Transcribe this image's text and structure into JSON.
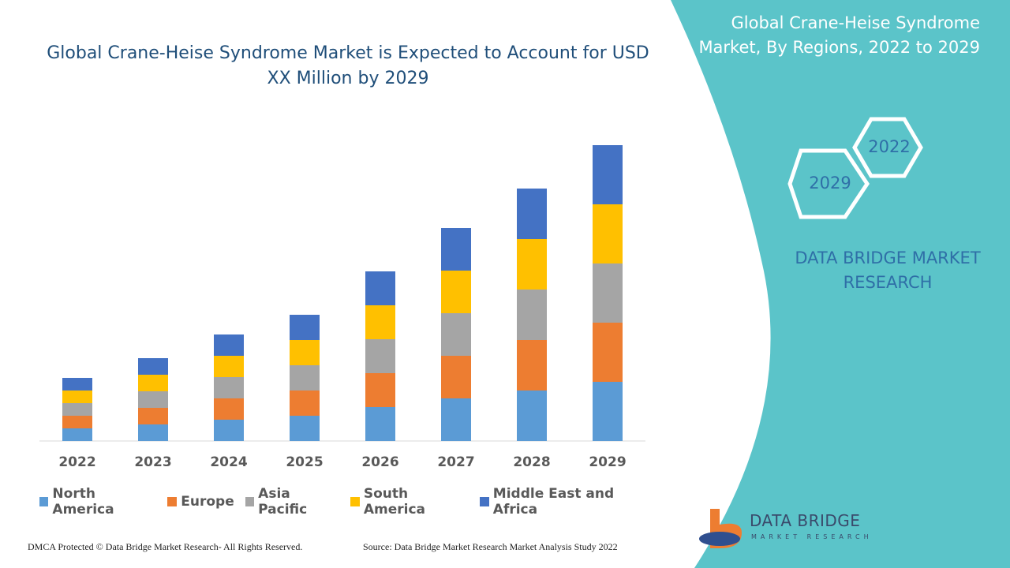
{
  "chart_data": {
    "type": "bar",
    "stacked": true,
    "title": "Global Crane-Heise Syndrome Market is Expected to Account for USD XX Million by 2029",
    "categories": [
      "2022",
      "2023",
      "2024",
      "2025",
      "2026",
      "2027",
      "2028",
      "2029"
    ],
    "series": [
      {
        "name": "North America",
        "color": "#5b9bd5",
        "values": [
          1.6,
          2.1,
          2.7,
          3.2,
          4.3,
          5.4,
          6.4,
          7.5
        ]
      },
      {
        "name": "Europe",
        "color": "#ed7d31",
        "values": [
          1.6,
          2.1,
          2.7,
          3.2,
          4.3,
          5.4,
          6.4,
          7.5
        ]
      },
      {
        "name": "Asia Pacific",
        "color": "#a5a5a5",
        "values": [
          1.6,
          2.1,
          2.7,
          3.2,
          4.3,
          5.4,
          6.4,
          7.5
        ]
      },
      {
        "name": "South America",
        "color": "#ffc000",
        "values": [
          1.6,
          2.1,
          2.7,
          3.2,
          4.3,
          5.4,
          6.4,
          7.5
        ]
      },
      {
        "name": "Middle East and Africa",
        "color": "#4472c4",
        "values": [
          1.6,
          2.1,
          2.7,
          3.2,
          4.3,
          5.4,
          6.4,
          7.5
        ]
      }
    ]
  },
  "sidebar": {
    "title": "Global Crane-Heise Syndrome Market, By Regions, 2022 to 2029",
    "hexagons": [
      "2022",
      "2029"
    ],
    "brand": "DATA BRIDGE MARKET RESEARCH"
  },
  "logo": {
    "name": "DATA BRIDGE",
    "tagline": "MARKET RESEARCH"
  },
  "footer": {
    "copyright": "DMCA Protected © Data Bridge Market Research- All Rights Reserved.",
    "source": "Source: Data Bridge Market Research Market Analysis Study 2022"
  }
}
